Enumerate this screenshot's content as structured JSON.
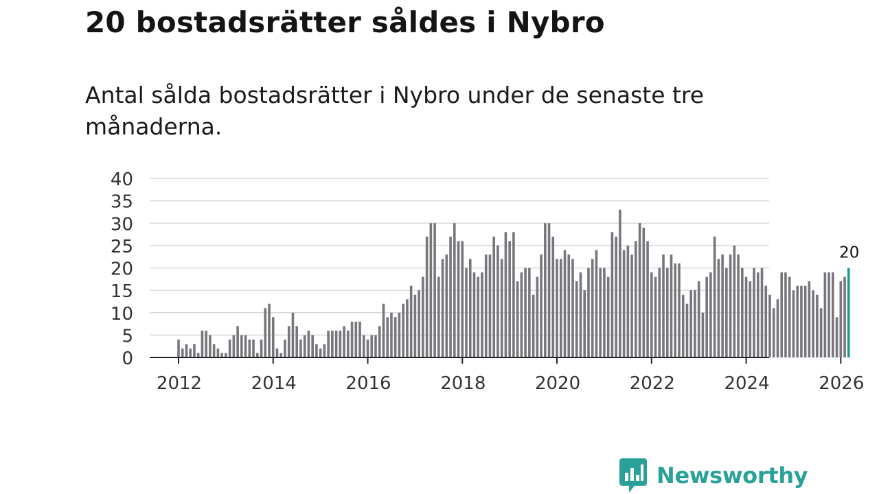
{
  "header": {
    "title": "20 bostadsrätter såldes i Nybro",
    "subtitle": "Antal sålda bostadsrätter i Nybro under de senaste tre månaderna."
  },
  "brand": {
    "name": "Newsworthy",
    "color": "#2aa198"
  },
  "colors": {
    "bar": "#76767c",
    "highlight": "#1e9a96",
    "grid": "#d9d9d9",
    "axis": "#222222"
  },
  "chart_data": {
    "type": "bar",
    "title": "Antal sålda bostadsrätter i Nybro",
    "start": "2012-01",
    "ylim": [
      0,
      40
    ],
    "yticks": [
      0,
      5,
      10,
      15,
      20,
      25,
      30,
      35,
      40
    ],
    "xticks": [
      "2012",
      "2014",
      "2016",
      "2018",
      "2020",
      "2022",
      "2024",
      "2026"
    ],
    "highlight_label": "20",
    "values": [
      4,
      2,
      3,
      2,
      3,
      1,
      6,
      6,
      5,
      3,
      2,
      1,
      1,
      4,
      5,
      7,
      5,
      5,
      4,
      4,
      1,
      4,
      11,
      12,
      9,
      2,
      1,
      4,
      7,
      10,
      7,
      4,
      5,
      6,
      5,
      3,
      2,
      3,
      6,
      6,
      6,
      6,
      7,
      6,
      8,
      8,
      8,
      5,
      4,
      5,
      5,
      7,
      12,
      9,
      10,
      9,
      10,
      12,
      13,
      16,
      14,
      15,
      18,
      27,
      30,
      30,
      18,
      22,
      23,
      27,
      30,
      26,
      26,
      20,
      22,
      19,
      18,
      19,
      23,
      23,
      27,
      25,
      22,
      28,
      26,
      28,
      17,
      19,
      20,
      20,
      14,
      18,
      23,
      30,
      30,
      27,
      22,
      22,
      24,
      23,
      22,
      17,
      19,
      15,
      20,
      22,
      24,
      20,
      20,
      18,
      28,
      27,
      33,
      24,
      25,
      23,
      26,
      30,
      29,
      26,
      19,
      18,
      20,
      23,
      20,
      23,
      21,
      21,
      14,
      12,
      15,
      15,
      17,
      10,
      18,
      19,
      27,
      22,
      23,
      20,
      23,
      25,
      23,
      20,
      18,
      17,
      20,
      19,
      20,
      16,
      14,
      11,
      13,
      19,
      19,
      18,
      15,
      16,
      16,
      16,
      17,
      15,
      14,
      11,
      19,
      19,
      19,
      9,
      17,
      18,
      20
    ]
  }
}
